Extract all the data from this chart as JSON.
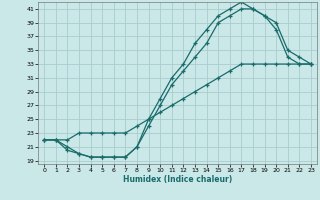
{
  "xlabel": "Humidex (Indice chaleur)",
  "bg_color": "#cbe8e8",
  "grid_color": "#aacccc",
  "line_color": "#1a6b6b",
  "ylim": [
    18.5,
    42
  ],
  "xlim": [
    -0.5,
    23.5
  ],
  "yticks": [
    19,
    21,
    23,
    25,
    27,
    29,
    31,
    33,
    35,
    37,
    39,
    41
  ],
  "xticks": [
    0,
    1,
    2,
    3,
    4,
    5,
    6,
    7,
    8,
    9,
    10,
    11,
    12,
    13,
    14,
    15,
    16,
    17,
    18,
    19,
    20,
    21,
    22,
    23
  ],
  "line1_x": [
    0,
    1,
    2,
    3,
    4,
    5,
    6,
    7,
    8,
    9,
    10,
    11,
    12,
    13,
    14,
    15,
    16,
    17,
    18,
    19,
    20,
    21,
    22,
    23
  ],
  "line1_y": [
    22,
    22,
    21,
    20,
    19.5,
    19.5,
    19.5,
    19.5,
    21,
    24,
    27,
    30,
    32,
    34,
    36,
    39,
    40,
    41,
    41,
    40,
    38,
    34,
    33,
    33
  ],
  "line2_x": [
    0,
    1,
    2,
    3,
    4,
    5,
    6,
    7,
    8,
    9,
    10,
    11,
    12,
    13,
    14,
    15,
    16,
    17,
    18,
    19,
    20,
    21,
    22,
    23
  ],
  "line2_y": [
    22,
    22,
    20.5,
    20,
    19.5,
    19.5,
    19.5,
    19.5,
    21,
    25,
    28,
    31,
    33,
    36,
    38,
    40,
    41,
    42,
    41,
    40,
    39,
    35,
    34,
    33
  ],
  "line3_x": [
    0,
    1,
    2,
    3,
    4,
    5,
    6,
    7,
    8,
    9,
    10,
    11,
    12,
    13,
    14,
    15,
    16,
    17,
    18,
    19,
    20,
    21,
    22,
    23
  ],
  "line3_y": [
    22,
    22,
    22,
    23,
    23,
    23,
    23,
    23,
    24,
    25,
    26,
    27,
    28,
    29,
    30,
    31,
    32,
    33,
    33,
    33,
    33,
    33,
    33,
    33
  ]
}
